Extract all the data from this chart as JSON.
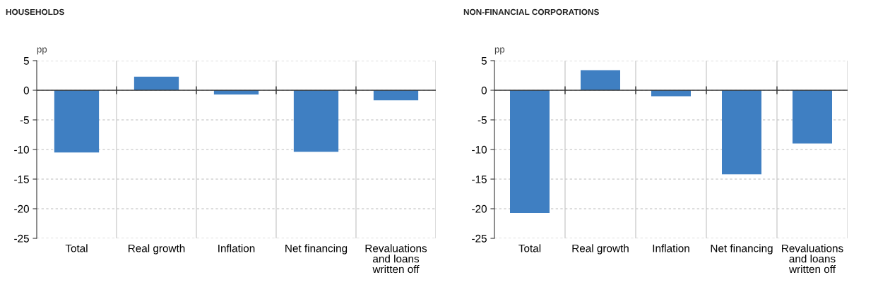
{
  "chart_data": [
    {
      "type": "bar",
      "title": "HOUSEHOLDS",
      "ylabel": "pp",
      "categories": [
        "Total",
        "Real growth",
        "Inflation",
        "Net financing",
        "Revaluations\nand loans\nwritten off"
      ],
      "values": [
        -10.5,
        2.3,
        -0.7,
        -10.4,
        -1.7
      ],
      "color": "#3f7fc2",
      "ylim": [
        -25,
        5
      ],
      "yticks": [
        -25,
        -20,
        -15,
        -10,
        -5,
        0,
        5
      ],
      "grid": true
    },
    {
      "type": "bar",
      "title": "NON-FINANCIAL CORPORATIONS",
      "ylabel": "pp",
      "categories": [
        "Total",
        "Real growth",
        "Inflation",
        "Net financing",
        "Revaluations\nand loans\nwritten off"
      ],
      "values": [
        -20.7,
        3.4,
        -1.0,
        -14.2,
        -9.0
      ],
      "color": "#3f7fc2",
      "ylim": [
        -25,
        5
      ],
      "yticks": [
        -25,
        -20,
        -15,
        -10,
        -5,
        0,
        5
      ],
      "grid": true
    }
  ]
}
